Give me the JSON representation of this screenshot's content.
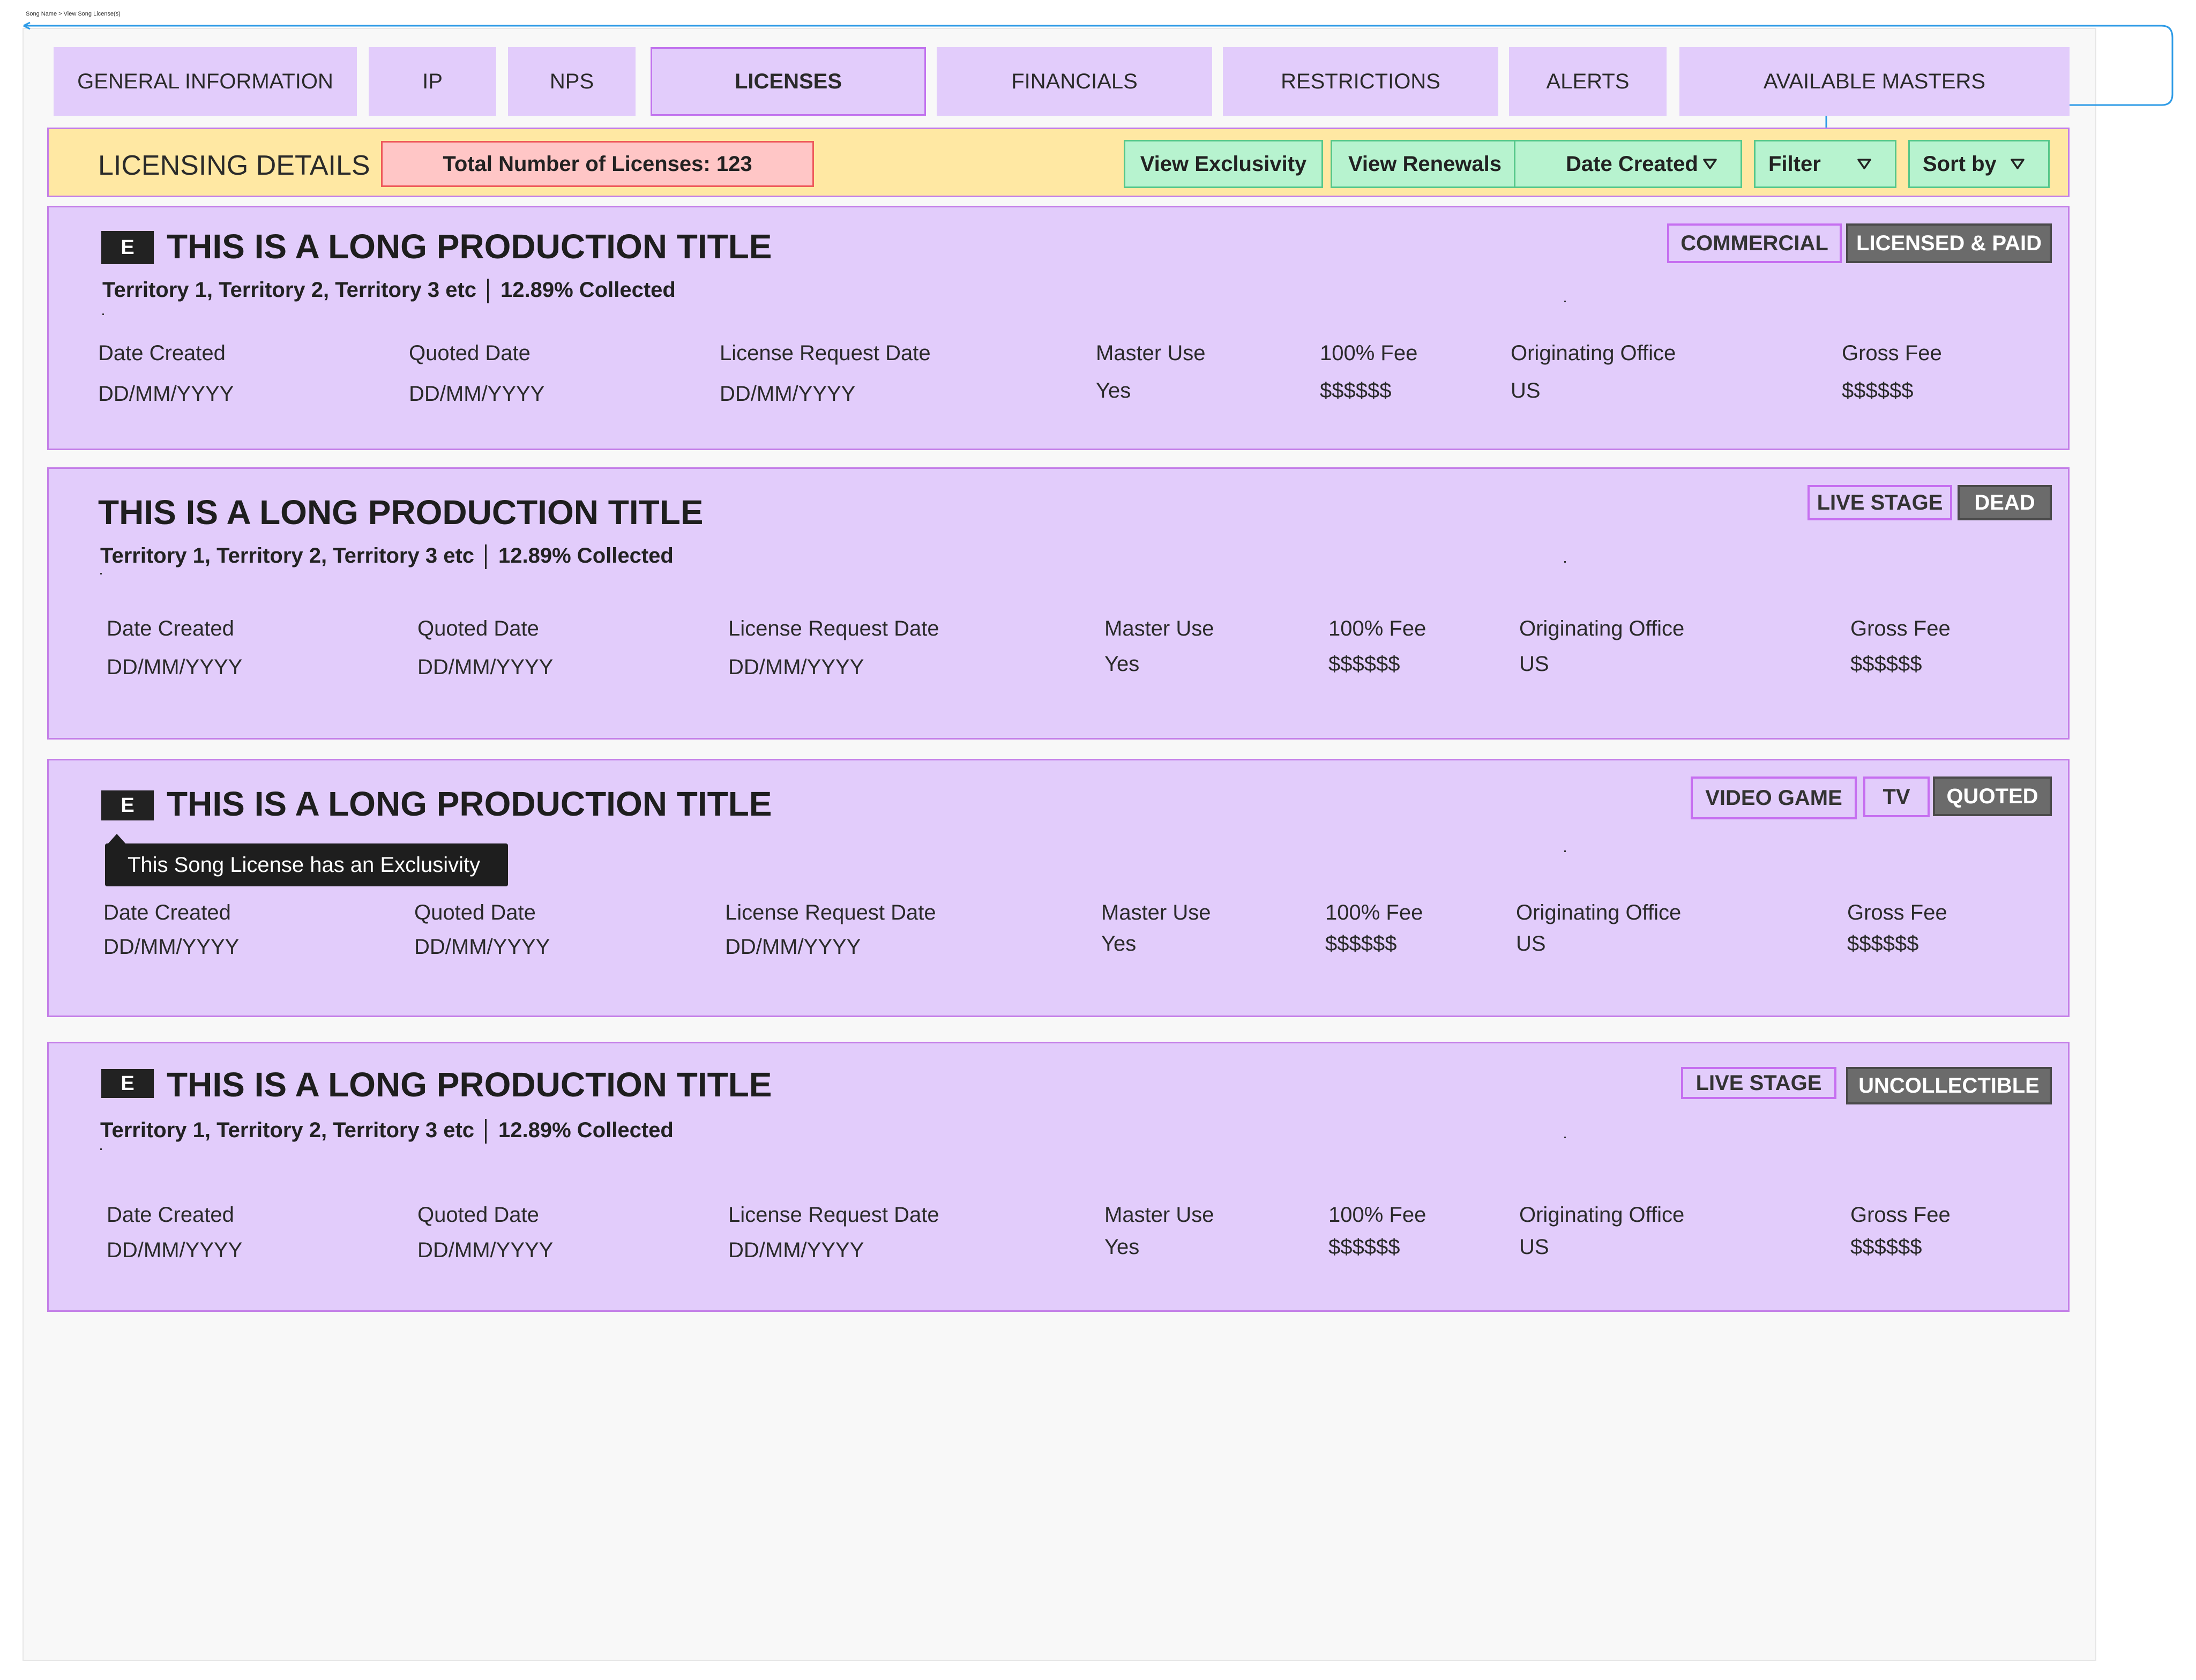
{
  "breadcrumb": "Song Name > View Song License(s)",
  "tabs": [
    {
      "label": "GENERAL INFORMATION",
      "active": false
    },
    {
      "label": "IP",
      "active": false
    },
    {
      "label": "NPS",
      "active": false
    },
    {
      "label": "LICENSES",
      "active": true
    },
    {
      "label": "FINANCIALS",
      "active": false
    },
    {
      "label": "RESTRICTIONS",
      "active": false
    },
    {
      "label": "ALERTS",
      "active": false
    },
    {
      "label": "AVAILABLE MASTERS",
      "active": false
    }
  ],
  "toolbar": {
    "heading": "LICENSING DETAILS",
    "total": "Total Number of Licenses: 123",
    "view_exclusivity": "View Exclusivity",
    "view_renewals": "View Renewals",
    "date_created": "Date Created",
    "filter": "Filter",
    "sort_by": "Sort by"
  },
  "field_labels": {
    "date_created": "Date Created",
    "quoted_date": "Quoted Date",
    "license_request_date": "License Request Date",
    "master_use": "Master Use",
    "fee_100": "100% Fee",
    "originating_office": "Originating Office",
    "gross_fee": "Gross Fee"
  },
  "cards": [
    {
      "exclusive_badge": "E",
      "title": "THIS IS A LONG PRODUCTION TITLE",
      "territories": "Territory 1, Territory 2, Territory 3 etc",
      "collected": "12.89% Collected",
      "tags": [
        "COMMERCIAL",
        "LICENSED & PAID"
      ],
      "values": {
        "date_created": "DD/MM/YYYY",
        "quoted_date": "DD/MM/YYYY",
        "license_request_date": "DD/MM/YYYY",
        "master_use": "Yes",
        "fee_100": "$$$$$$",
        "originating_office": "US",
        "gross_fee": "$$$$$$"
      }
    },
    {
      "exclusive_badge": "",
      "title": "THIS IS A LONG PRODUCTION TITLE",
      "territories": "Territory 1, Territory 2, Territory 3 etc",
      "collected": "12.89% Collected",
      "tags": [
        "LIVE STAGE",
        "DEAD"
      ],
      "values": {
        "date_created": "DD/MM/YYYY",
        "quoted_date": "DD/MM/YYYY",
        "license_request_date": "DD/MM/YYYY",
        "master_use": "Yes",
        "fee_100": "$$$$$$",
        "originating_office": "US",
        "gross_fee": "$$$$$$"
      }
    },
    {
      "exclusive_badge": "E",
      "title": "THIS IS A LONG PRODUCTION TITLE",
      "tooltip": "This Song License has an Exclusivity",
      "tags": [
        "VIDEO GAME",
        "TV",
        "QUOTED"
      ],
      "values": {
        "date_created": "DD/MM/YYYY",
        "quoted_date": "DD/MM/YYYY",
        "license_request_date": "DD/MM/YYYY",
        "master_use": "Yes",
        "fee_100": "$$$$$$",
        "originating_office": "US",
        "gross_fee": "$$$$$$"
      }
    },
    {
      "exclusive_badge": "E",
      "title": "THIS IS A LONG PRODUCTION TITLE",
      "territories": "Territory 1, Territory 2, Territory 3 etc",
      "collected": "12.89% Collected",
      "tags": [
        "LIVE STAGE",
        "UNCOLLECTIBLE"
      ],
      "values": {
        "date_created": "DD/MM/YYYY",
        "quoted_date": "DD/MM/YYYY",
        "license_request_date": "DD/MM/YYYY",
        "master_use": "Yes",
        "fee_100": "$$$$$$",
        "originating_office": "US",
        "gross_fee": "$$$$$$"
      }
    }
  ],
  "colors": {
    "tab_bg": "#e2ccfb",
    "card_bg": "#e2ccfb",
    "card_border": "#c47fe8",
    "toolbar_bg": "#ffe8a3",
    "green_button_bg": "#b7f3cf",
    "total_badge_bg": "#ffc6c6",
    "status_tag_dark": "#6b6b6b",
    "connector": "#2e9be6"
  },
  "icons": {
    "dropdown": "chevron-down-icon"
  }
}
